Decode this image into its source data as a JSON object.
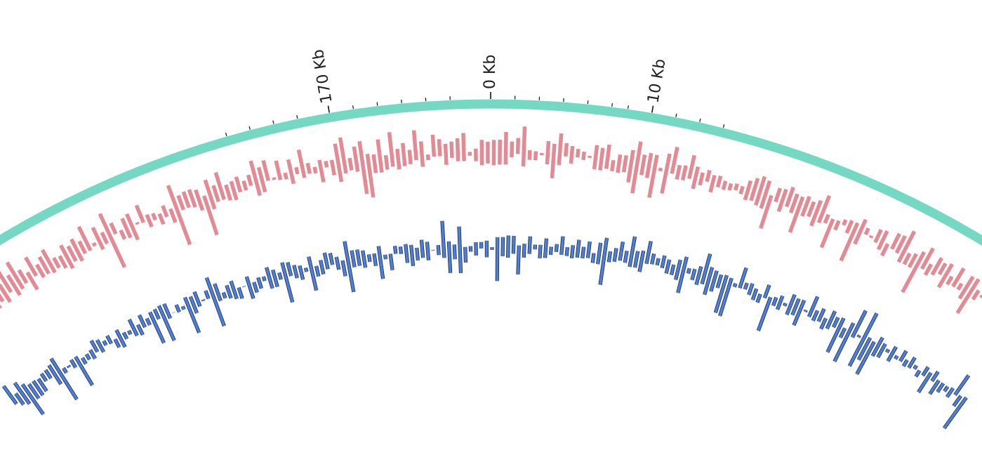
{
  "genome_plot": {
    "axis": {
      "ticks": [
        {
          "label": "170 Kb",
          "position_kb": 170,
          "labeled": true
        },
        {
          "label": "0 Kb",
          "position_kb": 0,
          "labeled": true
        },
        {
          "label": "10 Kb",
          "position_kb": 10,
          "labeled": true
        }
      ],
      "minor_ticks_kb": [
        163.5,
        165,
        166.5,
        168,
        171.5,
        173,
        174.5,
        176,
        177.5,
        1.5,
        3,
        4.5,
        6,
        7.5,
        8.5,
        11.5,
        13,
        14.5
      ]
    },
    "colors": {
      "backbone": "#74d8c3",
      "gc_content": "#e38b94",
      "gc_skew": "#4f7fd8",
      "gc_skew_outline": "#1a2a4a",
      "tick": "#111111"
    },
    "tracks": [
      {
        "name": "gc_content",
        "role": "inner ring 1"
      },
      {
        "name": "gc_skew",
        "role": "inner ring 2"
      }
    ]
  }
}
